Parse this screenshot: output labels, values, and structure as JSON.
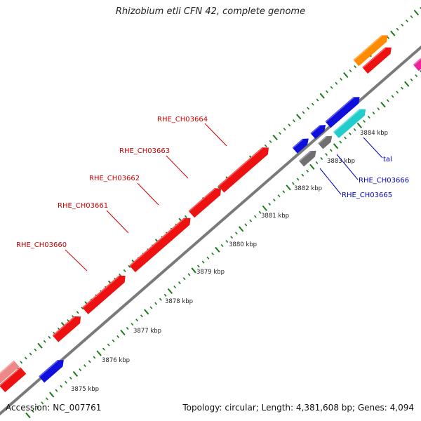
{
  "title": "Rhizobium etli CFN 42, complete genome",
  "footer": {
    "accession": "Accession: NC_007761",
    "summary": "Topology: circular; Length: 4,381,608 bp; Genes: 4,094"
  },
  "colors": {
    "red": "#ee1111",
    "blue": "#1010dd",
    "cyan": "#22cccc",
    "gray": "#707070",
    "orange": "#ff8c00",
    "pink": "#ee2299",
    "salmon": "#ee8888",
    "label_red": "#cc0000",
    "label_blue": "#0000bb",
    "dots": "#1a7a1a"
  },
  "ticks": [
    "3875 kbp",
    "3876 kbp",
    "3877 kbp",
    "3878 kbp",
    "3879 kbp",
    "3880 kbp",
    "3881 kbp",
    "3882 kbp",
    "3883 kbp",
    "3884 kbp"
  ],
  "genes": [
    {
      "label": "RHE_CH03660",
      "color": "label_red"
    },
    {
      "label": "RHE_CH03661",
      "color": "label_red"
    },
    {
      "label": "RHE_CH03662",
      "color": "label_red"
    },
    {
      "label": "RHE_CH03663",
      "color": "label_red"
    },
    {
      "label": "RHE_CH03664",
      "color": "label_red"
    },
    {
      "label": "RHE_CH03665",
      "color": "label_blue"
    },
    {
      "label": "RHE_CH03666",
      "color": "label_blue"
    },
    {
      "label": "tal",
      "color": "label_blue"
    }
  ]
}
